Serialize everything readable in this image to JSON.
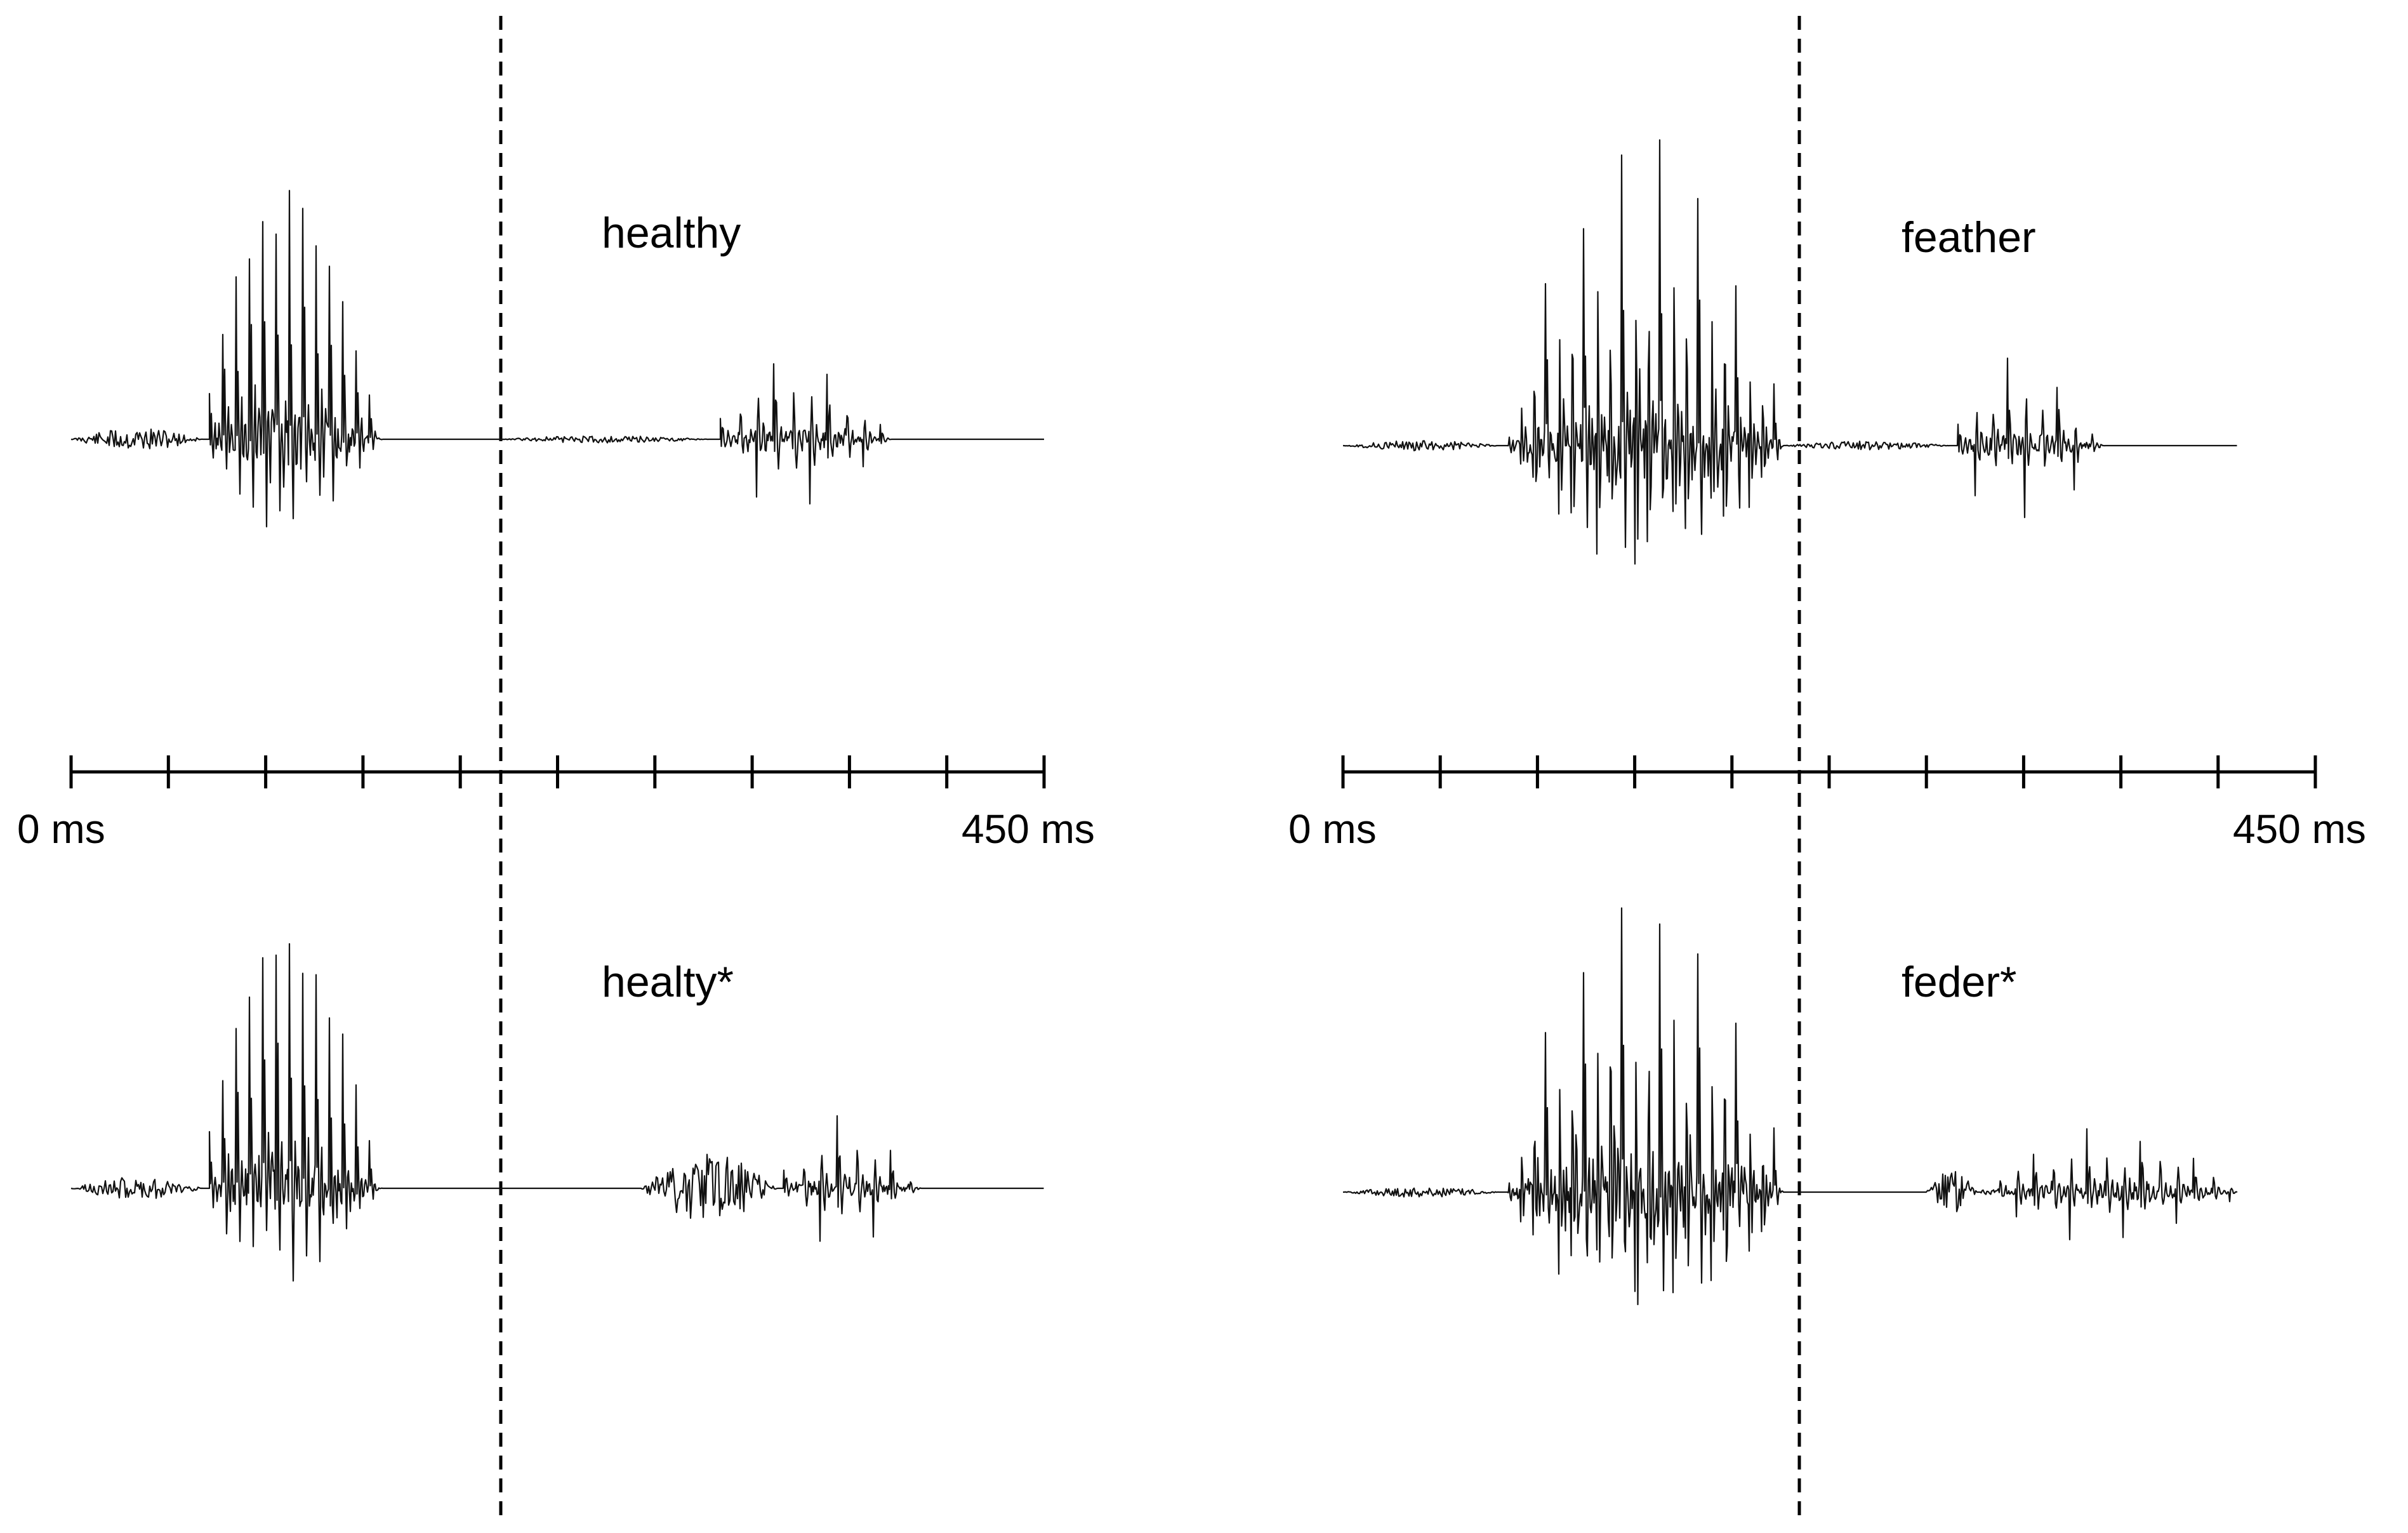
{
  "panels": [
    {
      "id": "left",
      "axis": {
        "start_label": "0 ms",
        "end_label": "450 ms",
        "tick_count": 10
      },
      "top_word": "healthy",
      "bottom_word": "healty*"
    },
    {
      "id": "right",
      "axis": {
        "start_label": "0 ms",
        "end_label": "450 ms",
        "tick_count": 10
      },
      "top_word": "feather",
      "bottom_word": "feder*"
    }
  ],
  "colors": {
    "waveform": "#111111",
    "axis": "#000000",
    "background": "#ffffff"
  }
}
